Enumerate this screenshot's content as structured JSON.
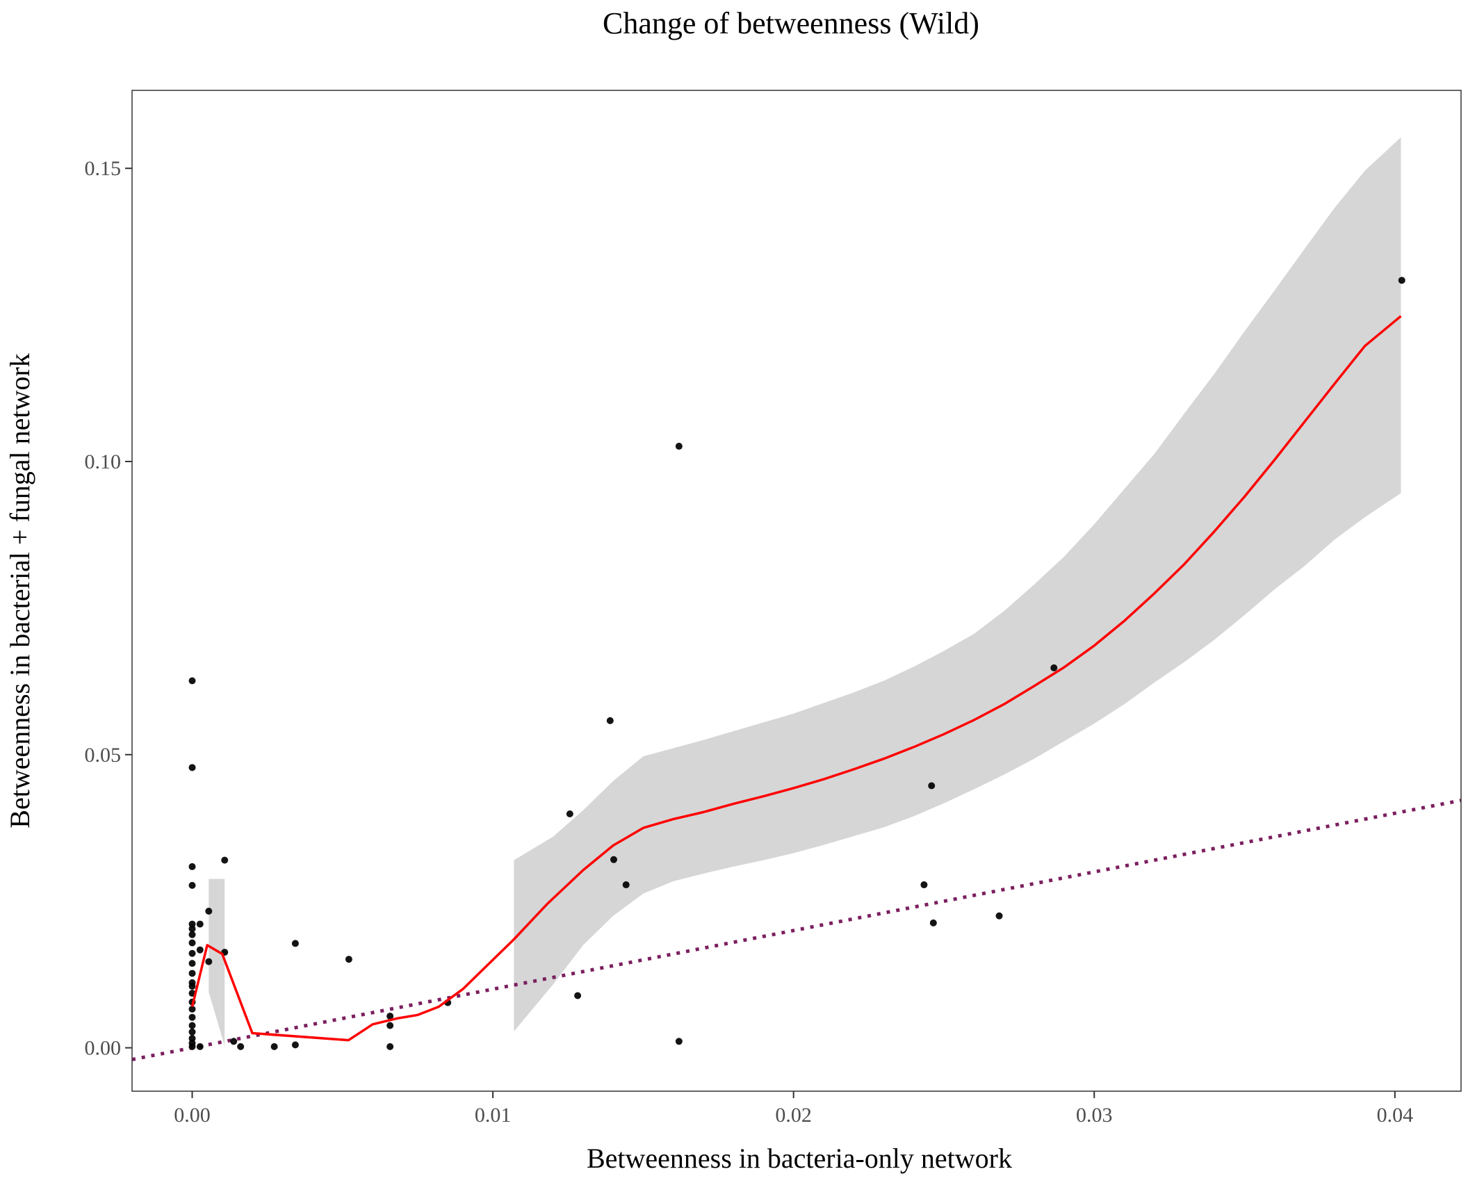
{
  "chart_data": {
    "type": "scatter",
    "title": "Change of betweenness (Wild)",
    "xlabel": "Betweenness in bacteria-only network",
    "ylabel": "Betweenness in bacterial + fungal network",
    "xlim": [
      -0.002,
      0.0422
    ],
    "ylim": [
      -0.0074,
      0.1633
    ],
    "x_ticks": [
      {
        "value": 0.0,
        "label": "0.00"
      },
      {
        "value": 0.01,
        "label": "0.01"
      },
      {
        "value": 0.02,
        "label": "0.02"
      },
      {
        "value": 0.03,
        "label": "0.03"
      },
      {
        "value": 0.04,
        "label": "0.04"
      }
    ],
    "y_ticks": [
      {
        "value": 0.0,
        "label": "0.00"
      },
      {
        "value": 0.05,
        "label": "0.05"
      },
      {
        "value": 0.1,
        "label": "0.10"
      },
      {
        "value": 0.15,
        "label": "0.15"
      }
    ],
    "grid": false,
    "colors": {
      "points": "#000000",
      "smooth_line": "#ff0000",
      "confidence_band": "#d6d6d6",
      "reference_line": "#7b1f5f"
    },
    "points": [
      {
        "x": 0.0,
        "y": 0.0626
      },
      {
        "x": 0.0,
        "y": 0.0478
      },
      {
        "x": 0.0,
        "y": 0.0309
      },
      {
        "x": 0.0,
        "y": 0.0277
      },
      {
        "x": 0.0,
        "y": 0.0211
      },
      {
        "x": 0.0,
        "y": 0.0203
      },
      {
        "x": 0.0,
        "y": 0.0193
      },
      {
        "x": 0.0,
        "y": 0.0179
      },
      {
        "x": 0.0,
        "y": 0.0161
      },
      {
        "x": 0.0,
        "y": 0.0144
      },
      {
        "x": 0.0,
        "y": 0.0127
      },
      {
        "x": 0.0,
        "y": 0.0111
      },
      {
        "x": 0.0,
        "y": 0.0105
      },
      {
        "x": 0.0,
        "y": 0.0093
      },
      {
        "x": 0.0,
        "y": 0.0078
      },
      {
        "x": 0.0,
        "y": 0.0066
      },
      {
        "x": 0.0,
        "y": 0.0052
      },
      {
        "x": 0.0,
        "y": 0.0038
      },
      {
        "x": 0.0,
        "y": 0.0027
      },
      {
        "x": 0.0,
        "y": 0.0016
      },
      {
        "x": 0.0,
        "y": 0.0008
      },
      {
        "x": 0.0,
        "y": 0.0002
      },
      {
        "x": 0.00026,
        "y": 0.0211
      },
      {
        "x": 0.00026,
        "y": 0.0167
      },
      {
        "x": 0.00026,
        "y": 0.0002
      },
      {
        "x": 0.00055,
        "y": 0.0233
      },
      {
        "x": 0.00055,
        "y": 0.0147
      },
      {
        "x": 0.00108,
        "y": 0.032
      },
      {
        "x": 0.00108,
        "y": 0.0163
      },
      {
        "x": 0.00138,
        "y": 0.0011
      },
      {
        "x": 0.00161,
        "y": 0.0002
      },
      {
        "x": 0.00273,
        "y": 0.0002
      },
      {
        "x": 0.00343,
        "y": 0.0178
      },
      {
        "x": 0.00343,
        "y": 0.0005
      },
      {
        "x": 0.00521,
        "y": 0.0151
      },
      {
        "x": 0.00658,
        "y": 0.0054
      },
      {
        "x": 0.00658,
        "y": 0.0038
      },
      {
        "x": 0.00658,
        "y": 0.0002
      },
      {
        "x": 0.0085,
        "y": 0.0077
      },
      {
        "x": 0.01256,
        "y": 0.0399
      },
      {
        "x": 0.01282,
        "y": 0.0089
      },
      {
        "x": 0.0139,
        "y": 0.0558
      },
      {
        "x": 0.01402,
        "y": 0.0321
      },
      {
        "x": 0.01443,
        "y": 0.0278
      },
      {
        "x": 0.01619,
        "y": 0.1026
      },
      {
        "x": 0.01619,
        "y": 0.0011
      },
      {
        "x": 0.02434,
        "y": 0.0278
      },
      {
        "x": 0.02459,
        "y": 0.0447
      },
      {
        "x": 0.02465,
        "y": 0.0213
      },
      {
        "x": 0.02684,
        "y": 0.0225
      },
      {
        "x": 0.02866,
        "y": 0.0648
      },
      {
        "x": 0.04023,
        "y": 0.1309
      }
    ],
    "smooth_line": [
      {
        "x": 0.0,
        "y": 0.007
      },
      {
        "x": 0.0005,
        "y": 0.0175
      },
      {
        "x": 0.001,
        "y": 0.016
      },
      {
        "x": 0.002,
        "y": 0.0025
      },
      {
        "x": 0.0052,
        "y": 0.0013
      },
      {
        "x": 0.006,
        "y": 0.004
      },
      {
        "x": 0.0068,
        "y": 0.005
      },
      {
        "x": 0.0075,
        "y": 0.0056
      },
      {
        "x": 0.0082,
        "y": 0.007
      },
      {
        "x": 0.009,
        "y": 0.01
      },
      {
        "x": 0.0098,
        "y": 0.014
      },
      {
        "x": 0.0107,
        "y": 0.0185
      },
      {
        "x": 0.0118,
        "y": 0.0245
      },
      {
        "x": 0.013,
        "y": 0.0303
      },
      {
        "x": 0.014,
        "y": 0.0345
      },
      {
        "x": 0.015,
        "y": 0.0375
      },
      {
        "x": 0.016,
        "y": 0.039
      },
      {
        "x": 0.017,
        "y": 0.0402
      },
      {
        "x": 0.018,
        "y": 0.0416
      },
      {
        "x": 0.019,
        "y": 0.0429
      },
      {
        "x": 0.02,
        "y": 0.0443
      },
      {
        "x": 0.021,
        "y": 0.0458
      },
      {
        "x": 0.022,
        "y": 0.0475
      },
      {
        "x": 0.023,
        "y": 0.0493
      },
      {
        "x": 0.024,
        "y": 0.0513
      },
      {
        "x": 0.025,
        "y": 0.0535
      },
      {
        "x": 0.026,
        "y": 0.0559
      },
      {
        "x": 0.027,
        "y": 0.0586
      },
      {
        "x": 0.028,
        "y": 0.0617
      },
      {
        "x": 0.029,
        "y": 0.0649
      },
      {
        "x": 0.03,
        "y": 0.0686
      },
      {
        "x": 0.031,
        "y": 0.0728
      },
      {
        "x": 0.032,
        "y": 0.0775
      },
      {
        "x": 0.033,
        "y": 0.0825
      },
      {
        "x": 0.034,
        "y": 0.0881
      },
      {
        "x": 0.035,
        "y": 0.094
      },
      {
        "x": 0.036,
        "y": 0.1003
      },
      {
        "x": 0.037,
        "y": 0.1068
      },
      {
        "x": 0.038,
        "y": 0.1133
      },
      {
        "x": 0.039,
        "y": 0.1197
      },
      {
        "x": 0.0402,
        "y": 0.1248
      }
    ],
    "confidence_band_left": {
      "upper": [
        {
          "x": 0.00055,
          "y": 0.0288
        },
        {
          "x": 0.00108,
          "y": 0.0288
        }
      ],
      "lower": [
        {
          "x": 0.00055,
          "y": 0.0095
        },
        {
          "x": 0.00108,
          "y": 0.0003
        }
      ]
    },
    "confidence_band_right": {
      "upper": [
        {
          "x": 0.0107,
          "y": 0.032
        },
        {
          "x": 0.012,
          "y": 0.036
        },
        {
          "x": 0.013,
          "y": 0.0405
        },
        {
          "x": 0.014,
          "y": 0.0455
        },
        {
          "x": 0.015,
          "y": 0.0497
        },
        {
          "x": 0.016,
          "y": 0.0511
        },
        {
          "x": 0.017,
          "y": 0.0525
        },
        {
          "x": 0.018,
          "y": 0.054
        },
        {
          "x": 0.019,
          "y": 0.0555
        },
        {
          "x": 0.02,
          "y": 0.057
        },
        {
          "x": 0.021,
          "y": 0.0588
        },
        {
          "x": 0.022,
          "y": 0.0606
        },
        {
          "x": 0.023,
          "y": 0.0626
        },
        {
          "x": 0.024,
          "y": 0.065
        },
        {
          "x": 0.025,
          "y": 0.0677
        },
        {
          "x": 0.026,
          "y": 0.0706
        },
        {
          "x": 0.027,
          "y": 0.0745
        },
        {
          "x": 0.028,
          "y": 0.079
        },
        {
          "x": 0.029,
          "y": 0.0838
        },
        {
          "x": 0.03,
          "y": 0.0893
        },
        {
          "x": 0.031,
          "y": 0.0953
        },
        {
          "x": 0.032,
          "y": 0.1013
        },
        {
          "x": 0.033,
          "y": 0.1082
        },
        {
          "x": 0.034,
          "y": 0.115
        },
        {
          "x": 0.035,
          "y": 0.1222
        },
        {
          "x": 0.036,
          "y": 0.1292
        },
        {
          "x": 0.037,
          "y": 0.1363
        },
        {
          "x": 0.038,
          "y": 0.1433
        },
        {
          "x": 0.039,
          "y": 0.1496
        },
        {
          "x": 0.0402,
          "y": 0.1553
        }
      ],
      "lower": [
        {
          "x": 0.0107,
          "y": 0.0028
        },
        {
          "x": 0.012,
          "y": 0.0108
        },
        {
          "x": 0.013,
          "y": 0.0175
        },
        {
          "x": 0.014,
          "y": 0.0225
        },
        {
          "x": 0.015,
          "y": 0.0263
        },
        {
          "x": 0.016,
          "y": 0.0284
        },
        {
          "x": 0.017,
          "y": 0.0297
        },
        {
          "x": 0.018,
          "y": 0.0309
        },
        {
          "x": 0.019,
          "y": 0.032
        },
        {
          "x": 0.02,
          "y": 0.0332
        },
        {
          "x": 0.021,
          "y": 0.0346
        },
        {
          "x": 0.022,
          "y": 0.0361
        },
        {
          "x": 0.023,
          "y": 0.0376
        },
        {
          "x": 0.024,
          "y": 0.0395
        },
        {
          "x": 0.025,
          "y": 0.0417
        },
        {
          "x": 0.026,
          "y": 0.0441
        },
        {
          "x": 0.027,
          "y": 0.0466
        },
        {
          "x": 0.028,
          "y": 0.0493
        },
        {
          "x": 0.029,
          "y": 0.0523
        },
        {
          "x": 0.03,
          "y": 0.0553
        },
        {
          "x": 0.031,
          "y": 0.0586
        },
        {
          "x": 0.032,
          "y": 0.0623
        },
        {
          "x": 0.033,
          "y": 0.0658
        },
        {
          "x": 0.034,
          "y": 0.0696
        },
        {
          "x": 0.035,
          "y": 0.0738
        },
        {
          "x": 0.036,
          "y": 0.0782
        },
        {
          "x": 0.037,
          "y": 0.0822
        },
        {
          "x": 0.038,
          "y": 0.0867
        },
        {
          "x": 0.039,
          "y": 0.0905
        },
        {
          "x": 0.0402,
          "y": 0.0946
        }
      ]
    },
    "reference_line": {
      "style": "dotted",
      "from": {
        "x": -0.002,
        "y": -0.002
      },
      "to": {
        "x": 0.0422,
        "y": 0.0422
      }
    }
  }
}
